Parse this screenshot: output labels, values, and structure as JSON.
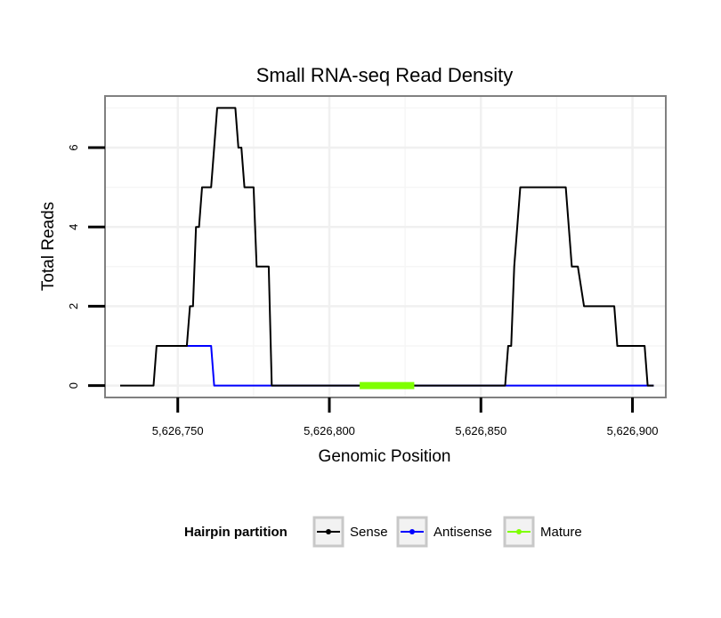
{
  "chart_data": {
    "type": "line",
    "title": "Small RNA-seq Read Density",
    "xlabel": "Genomic Position",
    "ylabel": "Total Reads",
    "xlim": [
      5626726,
      5626911
    ],
    "ylim": [
      -0.3,
      7.3
    ],
    "xticks": [
      5626750,
      5626800,
      5626850,
      5626900
    ],
    "xtick_labels": [
      "5,626,750",
      "5,626,800",
      "5,626,850",
      "5,626,900"
    ],
    "yticks": [
      0,
      2,
      4,
      6
    ],
    "ytick_labels": [
      "0",
      "2",
      "4",
      "6"
    ],
    "grid": true,
    "legend": {
      "title": "Hairpin partition",
      "position": "bottom",
      "entries": [
        {
          "name": "Sense",
          "color": "#000000"
        },
        {
          "name": "Antisense",
          "color": "#0000ff"
        },
        {
          "name": "Mature",
          "color": "#7fff00"
        }
      ]
    },
    "series": [
      {
        "name": "Sense",
        "color": "#000000",
        "points": [
          [
            5626731,
            0
          ],
          [
            5626742,
            0
          ],
          [
            5626743,
            1
          ],
          [
            5626753,
            1
          ],
          [
            5626754,
            2
          ],
          [
            5626755,
            2
          ],
          [
            5626756,
            4
          ],
          [
            5626757,
            4
          ],
          [
            5626758,
            5
          ],
          [
            5626761,
            5
          ],
          [
            5626762,
            6
          ],
          [
            5626763,
            7
          ],
          [
            5626768,
            7
          ],
          [
            5626769,
            7
          ],
          [
            5626770,
            6
          ],
          [
            5626771,
            6
          ],
          [
            5626772,
            5
          ],
          [
            5626775,
            5
          ],
          [
            5626776,
            3
          ],
          [
            5626780,
            3
          ],
          [
            5626781,
            0
          ],
          [
            5626858,
            0
          ],
          [
            5626859,
            1
          ],
          [
            5626860,
            1
          ],
          [
            5626861,
            3
          ],
          [
            5626863,
            5
          ],
          [
            5626878,
            5
          ],
          [
            5626880,
            3
          ],
          [
            5626882,
            3
          ],
          [
            5626884,
            2
          ],
          [
            5626894,
            2
          ],
          [
            5626895,
            1
          ],
          [
            5626904,
            1
          ],
          [
            5626905,
            0
          ],
          [
            5626907,
            0
          ]
        ]
      },
      {
        "name": "Antisense",
        "color": "#0000ff",
        "points": [
          [
            5626743,
            1
          ],
          [
            5626761,
            1
          ],
          [
            5626762,
            0
          ],
          [
            5626907,
            0
          ]
        ]
      },
      {
        "name": "Mature",
        "color": "#7fff00",
        "points": [
          [
            5626810,
            0
          ],
          [
            5626828,
            0
          ]
        ]
      }
    ]
  }
}
